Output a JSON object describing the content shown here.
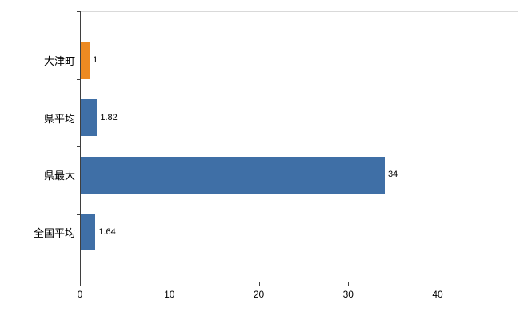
{
  "chart_data": {
    "type": "bar",
    "orientation": "horizontal",
    "title": "",
    "xlabel": "",
    "ylabel": "",
    "categories": [
      "大津町",
      "県平均",
      "県最大",
      "全国平均"
    ],
    "values": [
      1,
      1.82,
      34,
      1.64
    ],
    "value_labels": [
      "1",
      "1.82",
      "34",
      "1.64"
    ],
    "series_colors": [
      "#ed8a22",
      "#3f6fa6",
      "#3f6fa6",
      "#3f6fa6"
    ],
    "xlim": [
      0,
      40
    ],
    "x_ticks": [
      "0",
      "10",
      "20",
      "30",
      "40"
    ],
    "x_tick_values": [
      0,
      10,
      20,
      30,
      40
    ],
    "grid": false,
    "legend": "none",
    "background": "#ffffff",
    "axis_color": "#3f3f3f",
    "frame_color": "#d9d9d9"
  }
}
